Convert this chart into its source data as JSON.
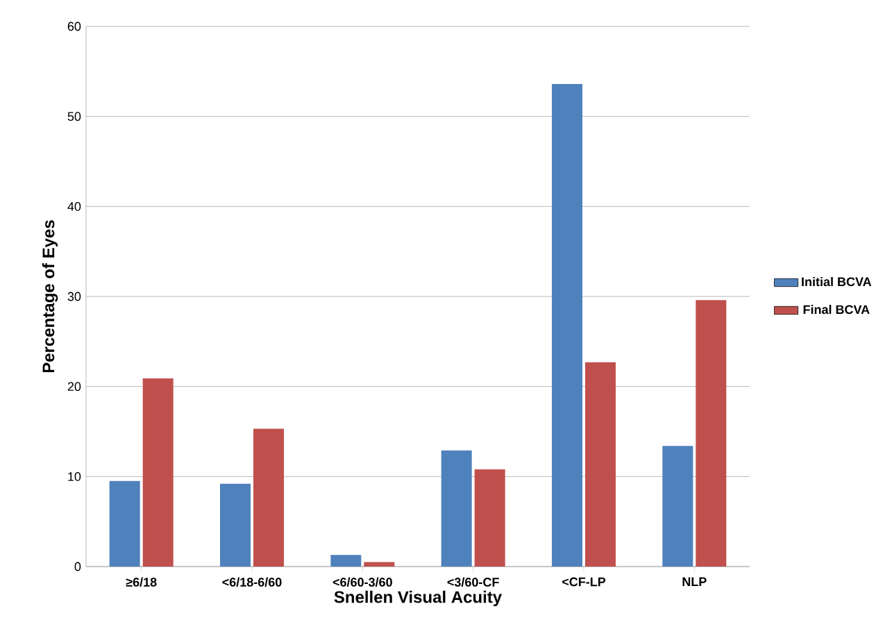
{
  "chart_data": {
    "type": "bar",
    "xlabel": "Snellen Visual Acuity",
    "ylabel": "Percentage of Eyes",
    "categories": [
      "≥6/18",
      "<6/18-6/60",
      "<6/60-3/60",
      "<3/60-CF",
      "<CF-LP",
      "NLP"
    ],
    "series": [
      {
        "name": "Initial BCVA",
        "color": "#4f81bd",
        "values": [
          9.5,
          9.2,
          1.3,
          12.9,
          53.6,
          13.4
        ]
      },
      {
        "name": "Final BCVA",
        "color": "#c0504d",
        "values": [
          20.9,
          15.3,
          0.5,
          10.8,
          22.7,
          29.6
        ]
      }
    ],
    "ylim": [
      0,
      60
    ],
    "yticks": [
      0,
      10,
      20,
      30,
      40,
      50,
      60
    ],
    "grid": "y",
    "legend": "right"
  }
}
